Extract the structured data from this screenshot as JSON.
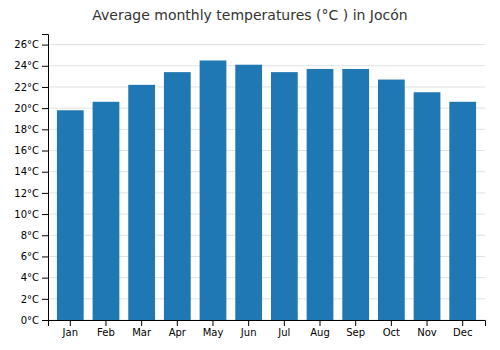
{
  "chart_data": {
    "type": "bar",
    "title": "Average monthly temperatures (°C ) in Jocón",
    "categories": [
      "Jan",
      "Feb",
      "Mar",
      "Apr",
      "May",
      "Jun",
      "Jul",
      "Aug",
      "Sep",
      "Oct",
      "Nov",
      "Dec"
    ],
    "values": [
      19.8,
      20.6,
      22.2,
      23.4,
      24.5,
      24.1,
      23.4,
      23.7,
      23.7,
      22.7,
      21.5,
      20.6
    ],
    "ylim": [
      0,
      27
    ],
    "yticks": [
      {
        "value": 0,
        "label": "0°C"
      },
      {
        "value": 2,
        "label": "2°C"
      },
      {
        "value": 4,
        "label": "4°C"
      },
      {
        "value": 6,
        "label": "6°C"
      },
      {
        "value": 8,
        "label": "8°C"
      },
      {
        "value": 10,
        "label": "10°C"
      },
      {
        "value": 12,
        "label": "12°C"
      },
      {
        "value": 14,
        "label": "14°C"
      },
      {
        "value": 16,
        "label": "16°C"
      },
      {
        "value": 18,
        "label": "18°C"
      },
      {
        "value": 20,
        "label": "20°C"
      },
      {
        "value": 22,
        "label": "22°C"
      },
      {
        "value": 24,
        "label": "24°C"
      },
      {
        "value": 26,
        "label": "26°C"
      }
    ],
    "grid": true
  }
}
